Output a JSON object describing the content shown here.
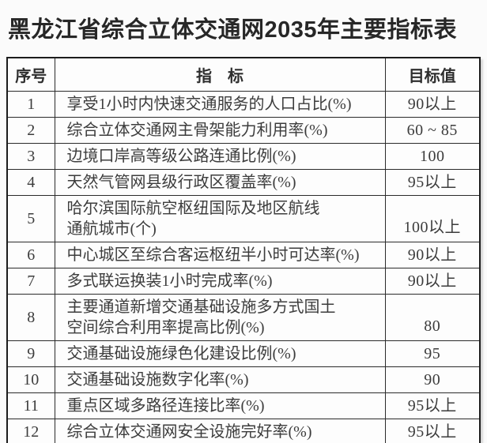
{
  "page": {
    "title": "黑龙江省综合立体交通网2035年主要指标表"
  },
  "colors": {
    "background": "#fbfbfb",
    "border": "#2b2b2b",
    "text": "#3c3c3c",
    "title_text": "#272727"
  },
  "table": {
    "columns": [
      "序号",
      "指　标",
      "目标值"
    ],
    "rows": [
      {
        "no": "1",
        "indicator": "享受1小时内快速交通服务的人口占比(%)",
        "target": "90以上"
      },
      {
        "no": "2",
        "indicator": "综合立体交通网主骨架能力利用率(%)",
        "target": "60 ~ 85"
      },
      {
        "no": "3",
        "indicator": "边境口岸高等级公路连通比例(%)",
        "target": "100"
      },
      {
        "no": "4",
        "indicator": "天然气管网县级行政区覆盖率(%)",
        "target": "95以上"
      },
      {
        "no": "5",
        "indicator": "哈尔滨国际航空枢纽国际及地区航线\n通航城市(个)",
        "target": "100以上"
      },
      {
        "no": "6",
        "indicator": "中心城区至综合客运枢纽半小时可达率(%)",
        "target": "90以上"
      },
      {
        "no": "7",
        "indicator": "多式联运换装1小时完成率(%)",
        "target": "90以上"
      },
      {
        "no": "8",
        "indicator": "主要通道新增交通基础设施多方式国土\n空间综合利用率提高比例(%)",
        "target": "80"
      },
      {
        "no": "9",
        "indicator": "交通基础设施绿色化建设比例(%)",
        "target": "95"
      },
      {
        "no": "10",
        "indicator": "交通基础设施数字化率(%)",
        "target": "90"
      },
      {
        "no": "11",
        "indicator": "重点区域多路径连接比率(%)",
        "target": "95以上"
      },
      {
        "no": "12",
        "indicator": "综合立体交通网安全设施完好率(%)",
        "target": "95以上"
      }
    ]
  }
}
